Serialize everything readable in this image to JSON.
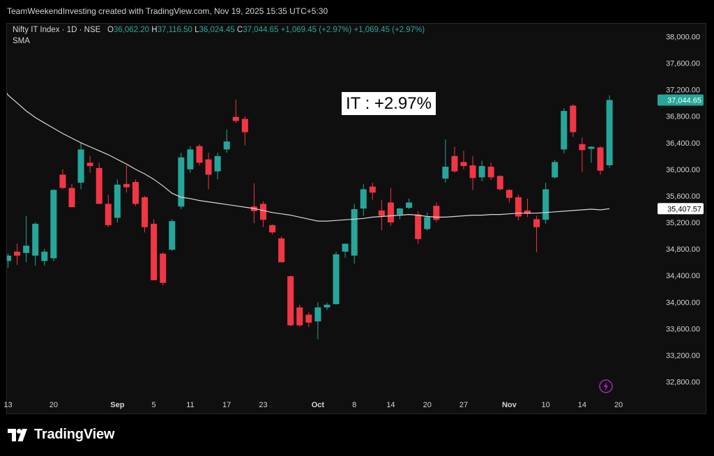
{
  "header": {
    "attribution": "TeamWeekendInvesting created with TradingView.com, Nov 19, 2025 15:35 UTC+5:30"
  },
  "legend": {
    "symbol": "Nifty IT Index · 1D · NSE",
    "o_label": "O",
    "o_value": "36,062.20",
    "h_label": "H",
    "h_value": "37,116.50",
    "l_label": "L",
    "l_value": "36,024.45",
    "c_label": "C",
    "c_value": "37,044.65",
    "change1": "+1,069.45 (+2.97%)",
    "change2": "+1,069.45 (+2.97%)",
    "indicator": "SMA"
  },
  "annotation": {
    "text": "IT : +2.97%"
  },
  "footer": {
    "brand": "TradingView"
  },
  "colors": {
    "up": "#26a69a",
    "down": "#f23645",
    "sma": "#d9d9d9",
    "axis_text": "#d1d4dc",
    "price_tag": "#26a69a",
    "bolt": "#9c27b0"
  },
  "chart_data": {
    "type": "candlestick",
    "title": "",
    "ylim": [
      32600,
      38250
    ],
    "y_ticks": [
      "38,000.00",
      "37,600.00",
      "37,200.00",
      "36,800.00",
      "36,400.00",
      "36,000.00",
      "35,600.00",
      "35,200.00",
      "34,800.00",
      "34,400.00",
      "34,000.00",
      "33,600.00",
      "33,200.00",
      "32,800.00"
    ],
    "y_tick_values": [
      38000,
      37600,
      37200,
      36800,
      36400,
      36000,
      35600,
      35200,
      34800,
      34400,
      34000,
      33600,
      33200,
      32800
    ],
    "x_ticks": [
      {
        "label": "13",
        "index": 0
      },
      {
        "label": "20",
        "index": 5
      },
      {
        "label": "Sep",
        "index": 12
      },
      {
        "label": "5",
        "index": 16
      },
      {
        "label": "11",
        "index": 20
      },
      {
        "label": "17",
        "index": 24
      },
      {
        "label": "23",
        "index": 28
      },
      {
        "label": "Oct",
        "index": 34
      },
      {
        "label": "8",
        "index": 38
      },
      {
        "label": "14",
        "index": 42
      },
      {
        "label": "20",
        "index": 46
      },
      {
        "label": "27",
        "index": 50
      },
      {
        "label": "Nov",
        "index": 55
      },
      {
        "label": "10",
        "index": 59
      },
      {
        "label": "14",
        "index": 63
      },
      {
        "label": "20",
        "index": 67
      }
    ],
    "candles": [
      {
        "o": 34620,
        "h": 34730,
        "l": 34520,
        "c": 34700
      },
      {
        "o": 34760,
        "h": 34880,
        "l": 34560,
        "c": 34700
      },
      {
        "o": 34740,
        "h": 35300,
        "l": 34600,
        "c": 34850
      },
      {
        "o": 34700,
        "h": 35200,
        "l": 34550,
        "c": 35180
      },
      {
        "o": 34620,
        "h": 34800,
        "l": 34550,
        "c": 34760
      },
      {
        "o": 34660,
        "h": 35700,
        "l": 34620,
        "c": 35690
      },
      {
        "o": 35920,
        "h": 36000,
        "l": 35700,
        "c": 35720
      },
      {
        "o": 35720,
        "h": 35780,
        "l": 35430,
        "c": 35430
      },
      {
        "o": 35800,
        "h": 36400,
        "l": 35700,
        "c": 36300
      },
      {
        "o": 36100,
        "h": 36200,
        "l": 35950,
        "c": 36050
      },
      {
        "o": 36020,
        "h": 36100,
        "l": 35480,
        "c": 35480
      },
      {
        "o": 35480,
        "h": 35620,
        "l": 35130,
        "c": 35160
      },
      {
        "o": 35270,
        "h": 35850,
        "l": 35200,
        "c": 35770
      },
      {
        "o": 35780,
        "h": 36050,
        "l": 35650,
        "c": 35730
      },
      {
        "o": 35810,
        "h": 35850,
        "l": 35450,
        "c": 35480
      },
      {
        "o": 35580,
        "h": 35600,
        "l": 35050,
        "c": 35130
      },
      {
        "o": 35180,
        "h": 35250,
        "l": 34340,
        "c": 34330
      },
      {
        "o": 34730,
        "h": 34750,
        "l": 34250,
        "c": 34290
      },
      {
        "o": 34790,
        "h": 35250,
        "l": 34770,
        "c": 35220
      },
      {
        "o": 35440,
        "h": 36250,
        "l": 35400,
        "c": 36180
      },
      {
        "o": 36000,
        "h": 36350,
        "l": 35950,
        "c": 36300
      },
      {
        "o": 36350,
        "h": 36380,
        "l": 36060,
        "c": 36100
      },
      {
        "o": 36150,
        "h": 36250,
        "l": 35700,
        "c": 35920
      },
      {
        "o": 35970,
        "h": 36250,
        "l": 35850,
        "c": 36200
      },
      {
        "o": 36300,
        "h": 36600,
        "l": 36250,
        "c": 36420
      },
      {
        "o": 36790,
        "h": 37050,
        "l": 36700,
        "c": 36730
      },
      {
        "o": 36760,
        "h": 36800,
        "l": 36360,
        "c": 36560
      },
      {
        "o": 35440,
        "h": 35790,
        "l": 35190,
        "c": 35370
      },
      {
        "o": 35480,
        "h": 35520,
        "l": 35130,
        "c": 35240
      },
      {
        "o": 35160,
        "h": 35170,
        "l": 35020,
        "c": 35050
      },
      {
        "o": 34960,
        "h": 34990,
        "l": 34600,
        "c": 34600
      },
      {
        "o": 34390,
        "h": 34400,
        "l": 33640,
        "c": 33650
      },
      {
        "o": 33920,
        "h": 33960,
        "l": 33630,
        "c": 33650
      },
      {
        "o": 33810,
        "h": 33850,
        "l": 33620,
        "c": 33690
      },
      {
        "o": 33710,
        "h": 34000,
        "l": 33440,
        "c": 33920
      },
      {
        "o": 33920,
        "h": 33990,
        "l": 33880,
        "c": 33960
      },
      {
        "o": 33970,
        "h": 34760,
        "l": 33960,
        "c": 34720
      },
      {
        "o": 34760,
        "h": 34880,
        "l": 34670,
        "c": 34880
      },
      {
        "o": 34700,
        "h": 35480,
        "l": 34580,
        "c": 35400
      },
      {
        "o": 35410,
        "h": 35780,
        "l": 35300,
        "c": 35700
      },
      {
        "o": 35740,
        "h": 35800,
        "l": 35540,
        "c": 35650
      },
      {
        "o": 35380,
        "h": 35540,
        "l": 35080,
        "c": 35300
      },
      {
        "o": 35500,
        "h": 35720,
        "l": 35150,
        "c": 35200
      },
      {
        "o": 35320,
        "h": 35420,
        "l": 35250,
        "c": 35410
      },
      {
        "o": 35420,
        "h": 35560,
        "l": 35400,
        "c": 35500
      },
      {
        "o": 35320,
        "h": 35370,
        "l": 34880,
        "c": 34950
      },
      {
        "o": 35100,
        "h": 35350,
        "l": 35080,
        "c": 35280
      },
      {
        "o": 35450,
        "h": 35500,
        "l": 35200,
        "c": 35240
      },
      {
        "o": 35860,
        "h": 36450,
        "l": 35800,
        "c": 36040
      },
      {
        "o": 36200,
        "h": 36340,
        "l": 35950,
        "c": 35970
      },
      {
        "o": 36110,
        "h": 36280,
        "l": 36000,
        "c": 36050
      },
      {
        "o": 36060,
        "h": 36200,
        "l": 35690,
        "c": 35870
      },
      {
        "o": 35880,
        "h": 36130,
        "l": 35820,
        "c": 36050
      },
      {
        "o": 36040,
        "h": 36100,
        "l": 35840,
        "c": 35880
      },
      {
        "o": 35900,
        "h": 35910,
        "l": 35680,
        "c": 35700
      },
      {
        "o": 35690,
        "h": 35700,
        "l": 35500,
        "c": 35570
      },
      {
        "o": 35580,
        "h": 35620,
        "l": 35230,
        "c": 35290
      },
      {
        "o": 35380,
        "h": 35560,
        "l": 35280,
        "c": 35330
      },
      {
        "o": 35250,
        "h": 35300,
        "l": 34750,
        "c": 35130
      },
      {
        "o": 35240,
        "h": 35800,
        "l": 35180,
        "c": 35700
      },
      {
        "o": 35880,
        "h": 36140,
        "l": 35860,
        "c": 36110
      },
      {
        "o": 36300,
        "h": 36920,
        "l": 36240,
        "c": 36880
      },
      {
        "o": 36960,
        "h": 36980,
        "l": 36490,
        "c": 36560
      },
      {
        "o": 36380,
        "h": 36480,
        "l": 35960,
        "c": 36290
      },
      {
        "o": 36310,
        "h": 36350,
        "l": 36100,
        "c": 36340
      },
      {
        "o": 36330,
        "h": 36350,
        "l": 35920,
        "c": 35980
      },
      {
        "o": 36062.2,
        "h": 37116.5,
        "l": 36024.45,
        "c": 37044.65
      }
    ],
    "sma": [
      37120,
      37000,
      36880,
      36780,
      36700,
      36620,
      36540,
      36470,
      36400,
      36340,
      36280,
      36220,
      36150,
      36080,
      36000,
      35930,
      35850,
      35750,
      35640,
      35580,
      35560,
      35530,
      35510,
      35490,
      35470,
      35450,
      35430,
      35410,
      35380,
      35350,
      35330,
      35310,
      35280,
      35250,
      35220,
      35220,
      35230,
      35240,
      35250,
      35260,
      35280,
      35290,
      35300,
      35310,
      35320,
      35310,
      35290,
      35280,
      35280,
      35290,
      35300,
      35310,
      35310,
      35320,
      35320,
      35330,
      35340,
      35340,
      35340,
      35350,
      35360,
      35370,
      35380,
      35390,
      35400,
      35390,
      35407.57
    ],
    "price_tags": [
      {
        "label": "37,044.65",
        "value": 37044.65,
        "series": "price"
      },
      {
        "label": "35,407.57",
        "value": 35407.57,
        "series": "sma"
      }
    ]
  }
}
